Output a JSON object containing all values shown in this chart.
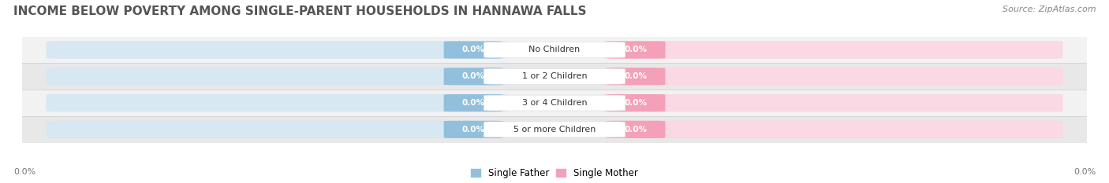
{
  "title": "INCOME BELOW POVERTY AMONG SINGLE-PARENT HOUSEHOLDS IN HANNAWA FALLS",
  "source": "Source: ZipAtlas.com",
  "categories": [
    "No Children",
    "1 or 2 Children",
    "3 or 4 Children",
    "5 or more Children"
  ],
  "father_values": [
    0.0,
    0.0,
    0.0,
    0.0
  ],
  "mother_values": [
    0.0,
    0.0,
    0.0,
    0.0
  ],
  "father_color": "#92C0DC",
  "mother_color": "#F4A0B8",
  "bar_bg_left_color": "#D8E8F2",
  "bar_bg_right_color": "#FAD8E4",
  "row_bg_even": "#F2F2F2",
  "row_bg_odd": "#E8E8E8",
  "title_color": "#555555",
  "title_fontsize": 11,
  "source_fontsize": 8,
  "label_fontsize": 8,
  "value_fontsize": 7.5,
  "legend_fontsize": 8.5,
  "background_color": "#FFFFFF",
  "axis_label_left": "0.0%",
  "axis_label_right": "0.0%"
}
